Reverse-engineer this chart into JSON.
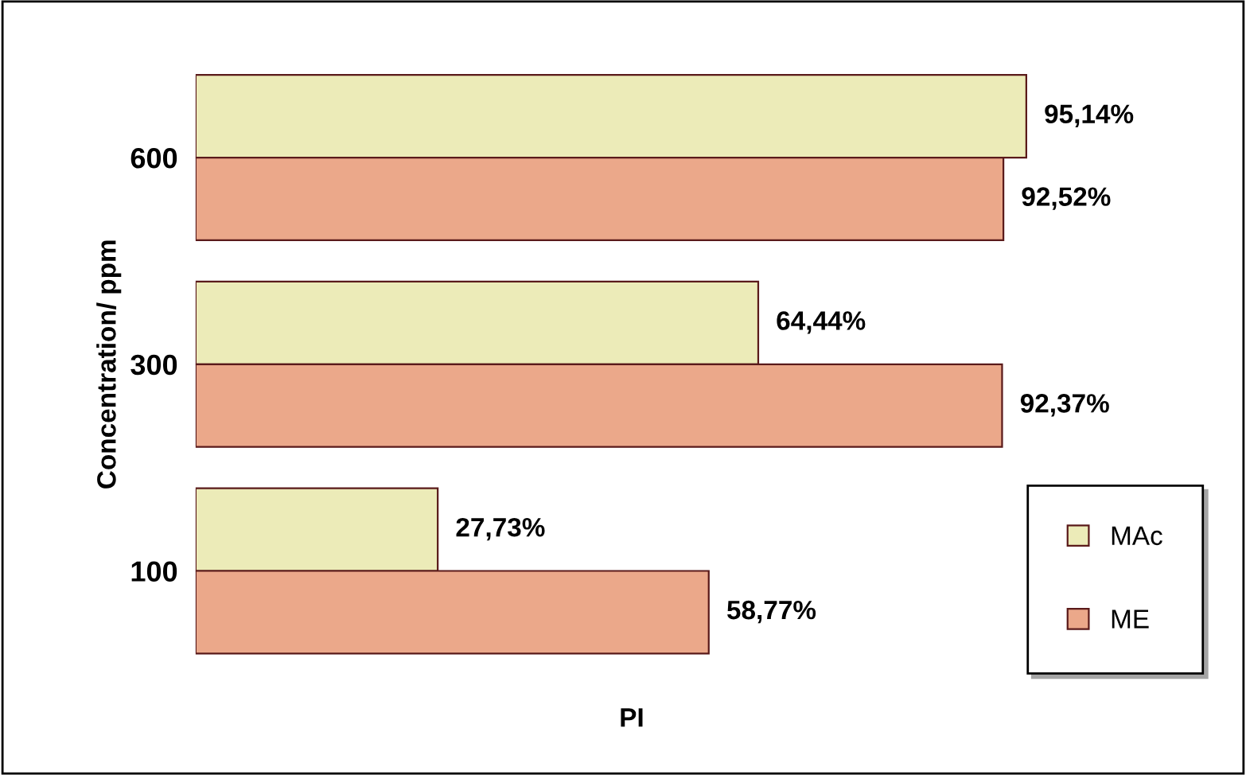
{
  "chart_data": {
    "type": "bar",
    "orientation": "horizontal",
    "xlabel": "PI",
    "ylabel": "Concentration/ ppm",
    "categories": [
      "600",
      "300",
      "100"
    ],
    "series": [
      {
        "name": "MAc",
        "color": "#ecebb8",
        "values": [
          95.14,
          64.44,
          27.73
        ],
        "value_labels": [
          "95,14%",
          "64,44%",
          "27,73%"
        ]
      },
      {
        "name": "ME",
        "color": "#eba88a",
        "values": [
          92.52,
          92.37,
          58.77
        ],
        "value_labels": [
          "92,52%",
          "92,37%",
          "58,77%"
        ]
      }
    ],
    "legend": "bottom right",
    "grid": false
  }
}
